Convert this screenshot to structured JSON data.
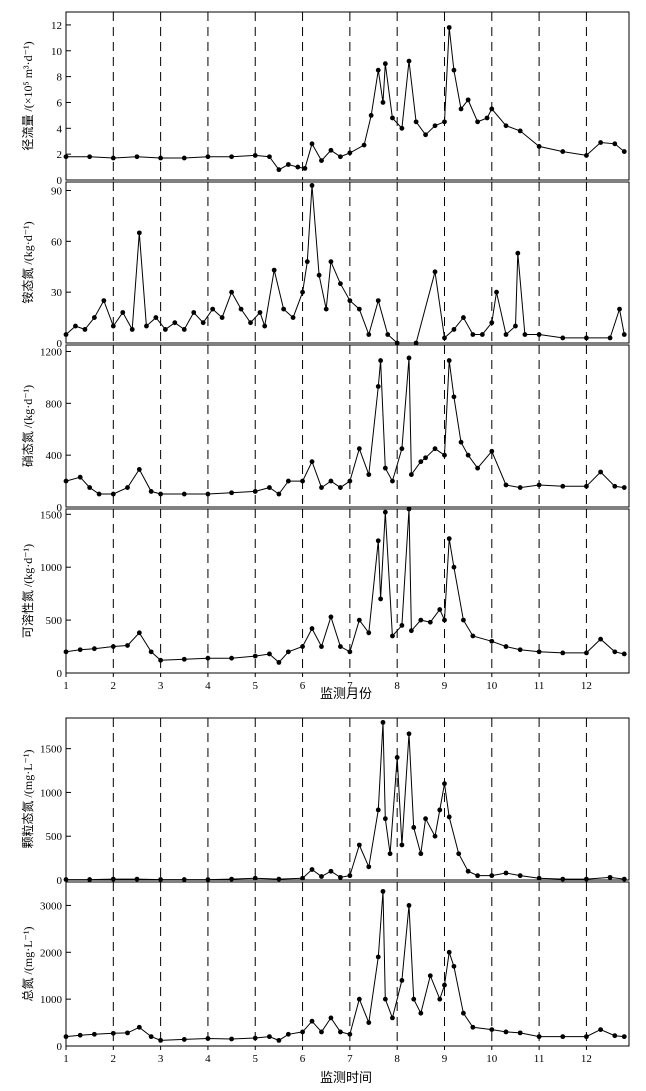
{
  "chart_data": [
    {
      "type": "line",
      "ylabel": "径流量 /(×10⁵ m³·d⁻¹)",
      "ylim": [
        0,
        13
      ],
      "yticks": [
        0,
        2,
        4,
        6,
        8,
        10,
        12
      ],
      "xlim": [
        1,
        12.9
      ],
      "x": [
        1.0,
        1.5,
        2.0,
        2.5,
        3.0,
        3.5,
        4.0,
        4.5,
        5.0,
        5.3,
        5.5,
        5.7,
        5.9,
        6.05,
        6.2,
        6.4,
        6.6,
        6.8,
        7.0,
        7.3,
        7.45,
        7.6,
        7.7,
        7.75,
        7.9,
        8.1,
        8.25,
        8.4,
        8.6,
        8.8,
        9.0,
        9.1,
        9.2,
        9.35,
        9.5,
        9.7,
        9.9,
        10.0,
        10.3,
        10.6,
        11.0,
        11.5,
        12.0,
        12.3,
        12.6,
        12.8
      ],
      "series": [
        {
          "values": [
            1.8,
            1.8,
            1.7,
            1.8,
            1.7,
            1.7,
            1.8,
            1.8,
            1.9,
            1.8,
            0.8,
            1.2,
            1.0,
            0.9,
            2.8,
            1.5,
            2.3,
            1.8,
            2.1,
            2.7,
            5.0,
            8.5,
            6.0,
            9.0,
            4.8,
            4.0,
            9.2,
            4.5,
            3.5,
            4.2,
            4.5,
            11.8,
            8.5,
            5.5,
            6.2,
            4.5,
            4.8,
            5.5,
            4.2,
            3.8,
            2.6,
            2.2,
            1.9,
            2.9,
            2.8,
            2.2
          ]
        }
      ]
    },
    {
      "type": "line",
      "ylabel": "铵态氮 /(kg·d⁻¹)",
      "ylim": [
        0,
        95
      ],
      "yticks": [
        0,
        30,
        60,
        90
      ],
      "xlim": [
        1,
        12.9
      ],
      "x": [
        1.0,
        1.2,
        1.4,
        1.6,
        1.8,
        2.0,
        2.2,
        2.4,
        2.55,
        2.7,
        2.9,
        3.1,
        3.3,
        3.5,
        3.7,
        3.9,
        4.1,
        4.3,
        4.5,
        4.7,
        4.9,
        5.1,
        5.2,
        5.4,
        5.6,
        5.8,
        6.0,
        6.1,
        6.2,
        6.35,
        6.5,
        6.6,
        6.8,
        7.0,
        7.2,
        7.4,
        7.6,
        7.8,
        8.0,
        8.4,
        8.8,
        9.0,
        9.2,
        9.4,
        9.6,
        9.8,
        10.0,
        10.1,
        10.3,
        10.5,
        10.55,
        10.7,
        11.0,
        11.5,
        12.0,
        12.5,
        12.7,
        12.8
      ],
      "series": [
        {
          "values": [
            5,
            10,
            8,
            15,
            25,
            10,
            18,
            8,
            65,
            10,
            15,
            8,
            12,
            8,
            18,
            12,
            20,
            15,
            30,
            20,
            12,
            18,
            10,
            43,
            20,
            15,
            30,
            48,
            93,
            40,
            20,
            48,
            35,
            25,
            20,
            5,
            25,
            5,
            0,
            0,
            42,
            3,
            8,
            15,
            5,
            5,
            12,
            30,
            5,
            10,
            53,
            5,
            5,
            3,
            3,
            3,
            20,
            5
          ]
        }
      ]
    },
    {
      "type": "line",
      "ylabel": "硝态氮 /(kg·d⁻¹)",
      "ylim": [
        0,
        1250
      ],
      "yticks": [
        0,
        400,
        800,
        1200
      ],
      "xlim": [
        1,
        12.9
      ],
      "x": [
        1.0,
        1.3,
        1.5,
        1.7,
        2.0,
        2.3,
        2.55,
        2.8,
        3.0,
        3.5,
        4.0,
        4.5,
        5.0,
        5.3,
        5.5,
        5.7,
        6.0,
        6.2,
        6.4,
        6.6,
        6.8,
        7.0,
        7.2,
        7.4,
        7.6,
        7.65,
        7.75,
        7.9,
        8.1,
        8.25,
        8.3,
        8.5,
        8.6,
        8.8,
        9.0,
        9.1,
        9.2,
        9.35,
        9.5,
        9.7,
        10.0,
        10.3,
        10.6,
        11.0,
        11.5,
        12.0,
        12.3,
        12.6,
        12.8
      ],
      "series": [
        {
          "values": [
            200,
            230,
            150,
            100,
            100,
            150,
            290,
            120,
            100,
            100,
            100,
            110,
            120,
            150,
            100,
            200,
            200,
            350,
            150,
            200,
            150,
            200,
            450,
            250,
            930,
            1130,
            300,
            200,
            450,
            1150,
            250,
            350,
            380,
            450,
            400,
            1130,
            850,
            500,
            400,
            300,
            430,
            170,
            150,
            170,
            160,
            160,
            270,
            160,
            150
          ]
        }
      ]
    },
    {
      "type": "line",
      "ylabel": "可溶性氮 /(kg·d⁻¹)",
      "ylim": [
        0,
        1550
      ],
      "yticks": [
        0,
        500,
        1000,
        1500
      ],
      "xlim": [
        1,
        12.9
      ],
      "x": [
        1.0,
        1.3,
        1.6,
        2.0,
        2.3,
        2.55,
        2.8,
        3.0,
        3.5,
        4.0,
        4.5,
        5.0,
        5.3,
        5.5,
        5.7,
        6.0,
        6.2,
        6.4,
        6.6,
        6.8,
        7.0,
        7.2,
        7.4,
        7.6,
        7.65,
        7.75,
        7.9,
        8.1,
        8.25,
        8.3,
        8.5,
        8.7,
        8.9,
        9.0,
        9.1,
        9.2,
        9.4,
        9.6,
        10.0,
        10.3,
        10.6,
        11.0,
        11.5,
        12.0,
        12.3,
        12.6,
        12.8
      ],
      "series": [
        {
          "values": [
            200,
            220,
            230,
            250,
            260,
            380,
            200,
            120,
            130,
            140,
            140,
            160,
            180,
            100,
            200,
            250,
            420,
            250,
            530,
            250,
            200,
            500,
            380,
            1250,
            700,
            1520,
            350,
            450,
            1550,
            400,
            500,
            480,
            600,
            500,
            1270,
            1000,
            500,
            350,
            300,
            250,
            220,
            200,
            190,
            190,
            320,
            200,
            180
          ]
        }
      ]
    },
    {
      "type": "line",
      "ylabel": "颗粒态氮 /(mg·L⁻¹)",
      "ylim": [
        0,
        1850
      ],
      "yticks": [
        0,
        500,
        1000,
        1500
      ],
      "xlim": [
        1,
        12.9
      ],
      "x": [
        1.0,
        1.5,
        2.0,
        2.5,
        3.0,
        3.5,
        4.0,
        4.5,
        5.0,
        5.5,
        6.0,
        6.2,
        6.4,
        6.6,
        6.8,
        7.0,
        7.2,
        7.4,
        7.6,
        7.7,
        7.75,
        7.85,
        8.0,
        8.1,
        8.25,
        8.35,
        8.5,
        8.6,
        8.8,
        8.9,
        9.0,
        9.1,
        9.3,
        9.5,
        9.7,
        10.0,
        10.3,
        10.6,
        11.0,
        11.5,
        12.0,
        12.5,
        12.8
      ],
      "series": [
        {
          "values": [
            5,
            5,
            10,
            10,
            5,
            5,
            5,
            10,
            20,
            10,
            20,
            120,
            40,
            100,
            30,
            50,
            400,
            150,
            800,
            1800,
            700,
            300,
            1400,
            400,
            1670,
            600,
            300,
            700,
            500,
            800,
            1100,
            720,
            300,
            100,
            50,
            50,
            80,
            50,
            20,
            10,
            10,
            30,
            10
          ]
        }
      ]
    },
    {
      "type": "line",
      "ylabel": "总氮 /(mg·L⁻¹)",
      "ylim": [
        0,
        3500
      ],
      "yticks": [
        0,
        1000,
        2000,
        3000
      ],
      "xlim": [
        1,
        12.9
      ],
      "x": [
        1.0,
        1.3,
        1.6,
        2.0,
        2.3,
        2.55,
        2.8,
        3.0,
        3.5,
        4.0,
        4.5,
        5.0,
        5.3,
        5.5,
        5.7,
        6.0,
        6.2,
        6.4,
        6.6,
        6.8,
        7.0,
        7.2,
        7.4,
        7.6,
        7.7,
        7.75,
        7.9,
        8.1,
        8.25,
        8.35,
        8.5,
        8.7,
        8.9,
        9.0,
        9.1,
        9.2,
        9.4,
        9.6,
        10.0,
        10.3,
        10.6,
        11.0,
        11.5,
        12.0,
        12.3,
        12.6,
        12.8
      ],
      "series": [
        {
          "values": [
            200,
            230,
            250,
            270,
            280,
            400,
            200,
            120,
            140,
            160,
            150,
            170,
            200,
            120,
            250,
            300,
            530,
            300,
            600,
            300,
            250,
            1000,
            500,
            1900,
            3300,
            1000,
            600,
            1400,
            3000,
            1000,
            700,
            1500,
            1000,
            1300,
            2000,
            1700,
            700,
            400,
            350,
            300,
            280,
            200,
            200,
            200,
            350,
            220,
            200
          ]
        }
      ]
    }
  ],
  "xaxis_top": {
    "ticks": [
      "1",
      "2",
      "3",
      "4",
      "5",
      "6",
      "7",
      "8",
      "9",
      "10",
      "11",
      "12"
    ],
    "label": "监测月份"
  },
  "xaxis_bottom": {
    "ticks": [
      "1",
      "2",
      "3",
      "4",
      "5",
      "6",
      "7",
      "8",
      "9",
      "10",
      "11",
      "12"
    ],
    "label": "监测时间"
  }
}
